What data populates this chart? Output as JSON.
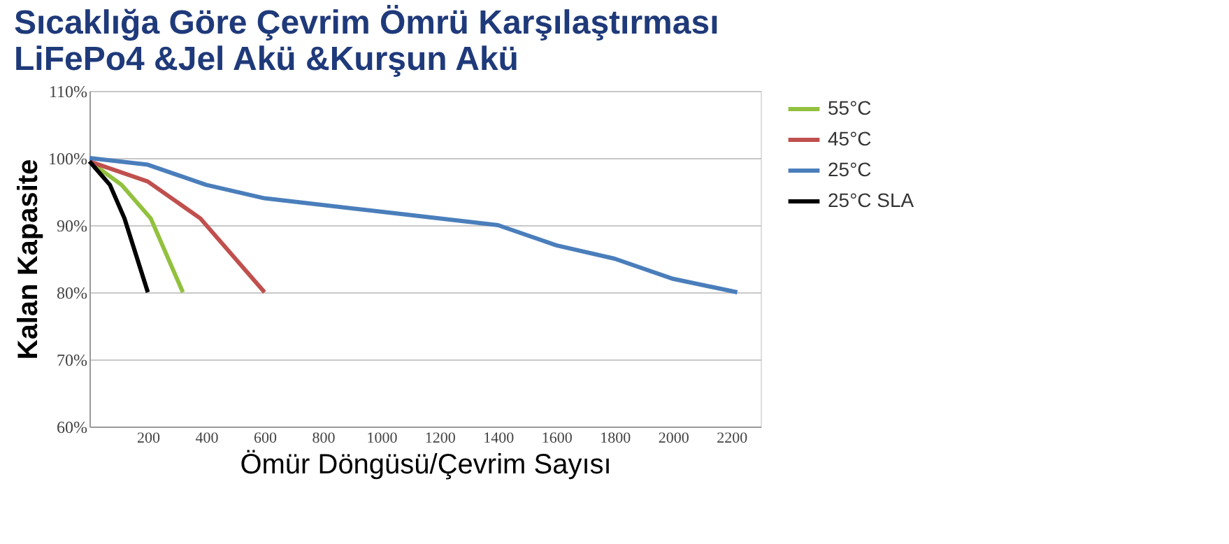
{
  "chart_data": {
    "type": "line",
    "title": [
      "Sıcaklığa Göre Çevrim Ömrü Karşılaştırması",
      "LiFePo4 &Jel Akü &Kurşun Akü"
    ],
    "xlabel": "Ömür  Döngüsü/Çevrim Sayısı",
    "ylabel": "Kalan Kapasite",
    "xlim": [
      0,
      2300
    ],
    "xticks": [
      200,
      400,
      600,
      800,
      1000,
      1200,
      1400,
      1600,
      1800,
      2000,
      2200
    ],
    "ylim": [
      60,
      110
    ],
    "yticks": [
      {
        "value": 60,
        "label": "60%"
      },
      {
        "value": 70,
        "label": "70%"
      },
      {
        "value": 80,
        "label": "80%"
      },
      {
        "value": 90,
        "label": "90%"
      },
      {
        "value": 100,
        "label": "100%"
      },
      {
        "value": 110,
        "label": "110%"
      }
    ],
    "grid": "y",
    "legend": "right",
    "marker": "none",
    "line_style": "solid",
    "series": [
      {
        "name": "55°C",
        "color": "#92c13e",
        "x": [
          0,
          110,
          210,
          320
        ],
        "values": [
          99.5,
          96,
          91,
          80
        ]
      },
      {
        "name": "45°C",
        "color": "#c0504d",
        "x": [
          0,
          200,
          380,
          600
        ],
        "values": [
          99.5,
          96.5,
          91,
          80
        ]
      },
      {
        "name": "25°C",
        "color": "#4a7ebb",
        "x": [
          0,
          200,
          400,
          600,
          1000,
          1400,
          1600,
          1800,
          2000,
          2220
        ],
        "values": [
          100,
          99,
          96,
          94,
          92,
          90,
          87,
          85,
          82,
          80
        ]
      },
      {
        "name": "25°C SLA",
        "color": "#000000",
        "x": [
          0,
          70,
          120,
          200
        ],
        "values": [
          99.5,
          96,
          91,
          80
        ]
      }
    ]
  }
}
